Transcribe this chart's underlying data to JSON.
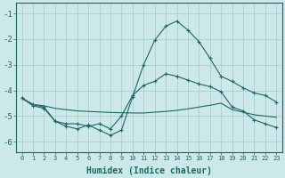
{
  "xlabel": "Humidex (Indice chaleur)",
  "background_color": "#cce8e8",
  "grid_color": "#aacece",
  "line_color": "#1a6868",
  "xlim": [
    -0.5,
    23.5
  ],
  "ylim": [
    -6.4,
    -0.6
  ],
  "yticks": [
    -6,
    -5,
    -4,
    -3,
    -2,
    -1
  ],
  "xtick_labels": [
    "0",
    "1",
    "2",
    "3",
    "4",
    "5",
    "6",
    "7",
    "8",
    "9",
    "10",
    "11",
    "12",
    "13",
    "14",
    "15",
    "16",
    "17",
    "18",
    "19",
    "20",
    "21",
    "22",
    "23"
  ],
  "series_spike_x": [
    0,
    1,
    2,
    3,
    4,
    5,
    6,
    7,
    8,
    9,
    10,
    11,
    12,
    13,
    14,
    15,
    16,
    17,
    18,
    19,
    20,
    21,
    22,
    23
  ],
  "series_spike_y": [
    -4.3,
    -4.55,
    -4.65,
    -5.2,
    -5.4,
    -5.5,
    -5.35,
    -5.55,
    -5.75,
    -5.55,
    -4.25,
    -3.0,
    -2.05,
    -1.5,
    -1.3,
    -1.65,
    -2.1,
    -2.75,
    -3.45,
    -3.65,
    -3.9,
    -4.1,
    -4.2,
    -4.45
  ],
  "series_mid_x": [
    0,
    1,
    2,
    3,
    4,
    5,
    6,
    7,
    8,
    9,
    10,
    11,
    12,
    13,
    14,
    15,
    16,
    17,
    18,
    19,
    20,
    21,
    22,
    23
  ],
  "series_mid_y": [
    -4.3,
    -4.6,
    -4.7,
    -5.2,
    -5.3,
    -5.3,
    -5.4,
    -5.3,
    -5.5,
    -5.0,
    -4.2,
    -3.8,
    -3.65,
    -3.35,
    -3.45,
    -3.6,
    -3.75,
    -3.85,
    -4.05,
    -4.65,
    -4.8,
    -5.15,
    -5.3,
    -5.45
  ],
  "series_flat_x": [
    0,
    1,
    2,
    3,
    4,
    5,
    6,
    7,
    8,
    9,
    10,
    11,
    12,
    13,
    14,
    15,
    16,
    17,
    18,
    19,
    20,
    21,
    22,
    23
  ],
  "series_flat_y": [
    -4.3,
    -4.55,
    -4.6,
    -4.7,
    -4.75,
    -4.8,
    -4.82,
    -4.84,
    -4.86,
    -4.87,
    -4.88,
    -4.88,
    -4.85,
    -4.82,
    -4.78,
    -4.72,
    -4.65,
    -4.58,
    -4.5,
    -4.75,
    -4.85,
    -4.95,
    -5.0,
    -5.05
  ]
}
